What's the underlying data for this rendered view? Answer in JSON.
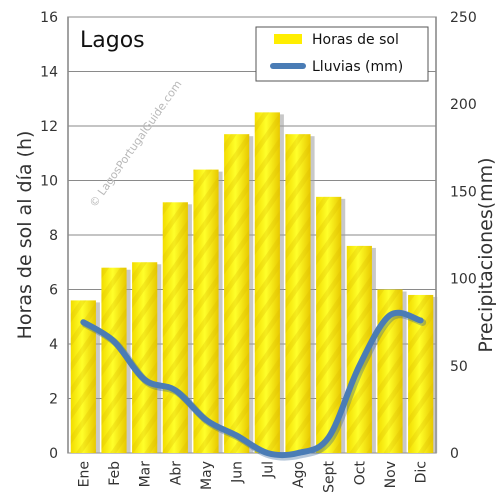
{
  "chart_data": {
    "type": "bar+line",
    "title": "Lagos",
    "watermark": "© LagosPortugalGuide.com",
    "categories": [
      "Ene",
      "Feb",
      "Mar",
      "Abr",
      "May",
      "Jun",
      "Jul",
      "Ago",
      "Sept",
      "Oct",
      "Nov",
      "Dic"
    ],
    "series": [
      {
        "name": "Horas de sol",
        "axis": "left",
        "kind": "bar",
        "color": "#ffee00",
        "values": [
          5.6,
          6.8,
          7.0,
          9.2,
          10.4,
          11.7,
          12.5,
          11.7,
          9.4,
          7.6,
          6.0,
          5.8
        ]
      },
      {
        "name": "Lluvias (mm)",
        "axis": "right",
        "kind": "line",
        "color": "#4a7cb5",
        "values": [
          75,
          64,
          42,
          36,
          19,
          10,
          0,
          0,
          9,
          50,
          79,
          76
        ]
      }
    ],
    "ylabel_left": "Horas de sol al día (h)",
    "ylabel_right": "Precipitaciones(mm)",
    "ylim_left": [
      0,
      16
    ],
    "ylim_right": [
      0,
      250
    ],
    "yticks_left": [
      0,
      2,
      4,
      6,
      8,
      10,
      12,
      14,
      16
    ],
    "yticks_right": [
      0,
      50,
      100,
      150,
      200,
      250
    ],
    "grid": true,
    "legend": "top-right"
  }
}
